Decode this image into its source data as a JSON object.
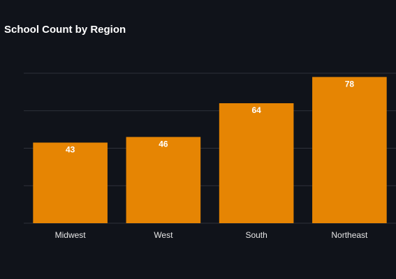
{
  "chart_data": {
    "type": "bar",
    "title": "School Count by Region",
    "categories": [
      "Midwest",
      "West",
      "South",
      "Northeast"
    ],
    "values": [
      43,
      46,
      64,
      78
    ],
    "xlabel": "",
    "ylabel": "",
    "ylim": [
      0,
      80
    ],
    "grid": true,
    "bar_color": "#e68503",
    "grid_color": "#2e323a",
    "background": "#10131a"
  }
}
